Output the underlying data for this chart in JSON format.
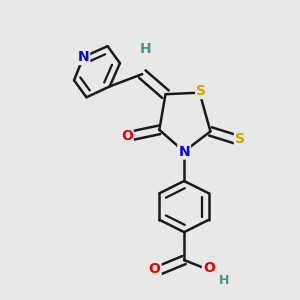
{
  "background_color": "#e8e8e8",
  "atom_colors": {
    "C": "#1a1a1a",
    "N": "#0000ee",
    "O": "#ee0000",
    "S": "#ccaa00",
    "H": "#4a9090"
  },
  "bond_color": "#1a1a1a",
  "figsize": [
    3.0,
    3.0
  ],
  "dpi": 100
}
